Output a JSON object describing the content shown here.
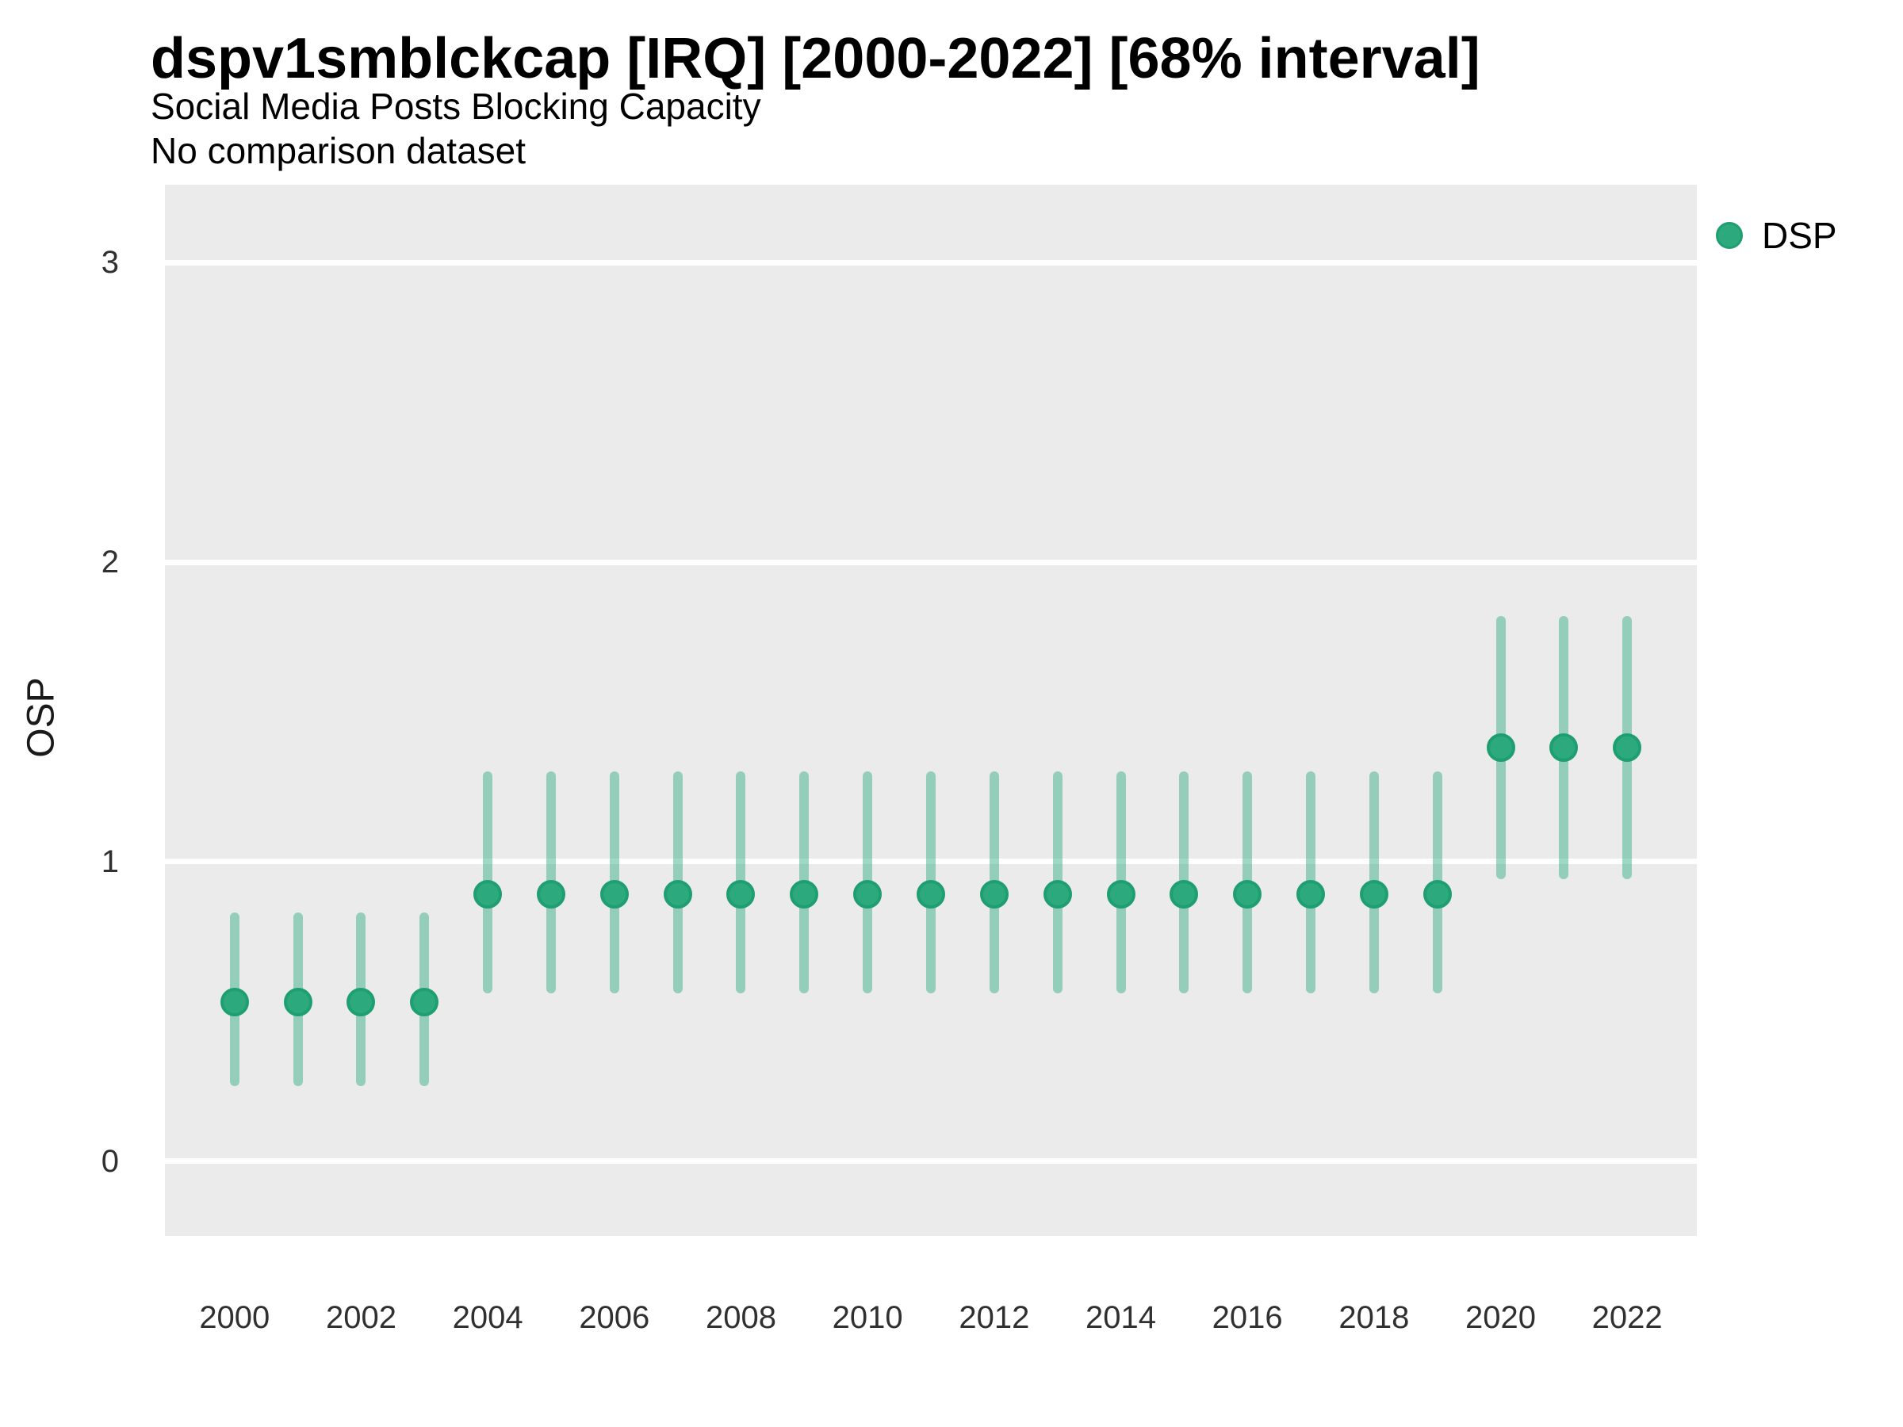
{
  "header": {
    "title": "dspv1smblckcap [IRQ] [2000-2022] [68% interval]",
    "subtitle": "Social Media Posts Blocking Capacity",
    "subtitle2": "No comparison dataset"
  },
  "chart_data": {
    "type": "pointrange",
    "title": "dspv1smblckcap [IRQ] [2000-2022] [68% interval]",
    "subtitle": "Social Media Posts Blocking Capacity",
    "note": "No comparison dataset",
    "xlabel": "",
    "ylabel": "OSP",
    "legend": {
      "position": "right",
      "entries": [
        {
          "label": "DSP",
          "color": "#2CAA7E"
        }
      ]
    },
    "x": [
      2000,
      2001,
      2002,
      2003,
      2004,
      2005,
      2006,
      2007,
      2008,
      2009,
      2010,
      2011,
      2012,
      2013,
      2014,
      2015,
      2016,
      2017,
      2018,
      2019,
      2020,
      2021,
      2022
    ],
    "series": [
      {
        "name": "DSP",
        "mid": [
          0.53,
          0.53,
          0.53,
          0.53,
          0.89,
          0.89,
          0.89,
          0.89,
          0.89,
          0.89,
          0.89,
          0.89,
          0.89,
          0.89,
          0.89,
          0.89,
          0.89,
          0.89,
          0.89,
          0.89,
          1.38,
          1.38,
          1.38
        ],
        "lo": [
          0.25,
          0.25,
          0.25,
          0.25,
          0.56,
          0.56,
          0.56,
          0.56,
          0.56,
          0.56,
          0.56,
          0.56,
          0.56,
          0.56,
          0.56,
          0.56,
          0.56,
          0.56,
          0.56,
          0.56,
          0.94,
          0.94,
          0.94
        ],
        "hi": [
          0.83,
          0.83,
          0.83,
          0.83,
          1.3,
          1.3,
          1.3,
          1.3,
          1.3,
          1.3,
          1.3,
          1.3,
          1.3,
          1.3,
          1.3,
          1.3,
          1.3,
          1.3,
          1.3,
          1.3,
          1.82,
          1.82,
          1.82
        ]
      }
    ],
    "interval_level": "68%",
    "yticks": [
      0,
      1,
      2,
      3
    ],
    "xticks": [
      2000,
      2002,
      2004,
      2006,
      2008,
      2010,
      2012,
      2014,
      2016,
      2018,
      2020,
      2022
    ],
    "ylim": [
      -0.25,
      3.26
    ],
    "xlim": [
      1998.9,
      2023.1
    ],
    "grid": "horizontal-major-white",
    "panel_bg": "#EBEBEB",
    "gridline_color": "#FFFFFF",
    "colors": {
      "point_fill": "#2CAA7E",
      "point_stroke": "#1E9E71",
      "interval": "rgba(42,168,124,0.45)"
    }
  }
}
